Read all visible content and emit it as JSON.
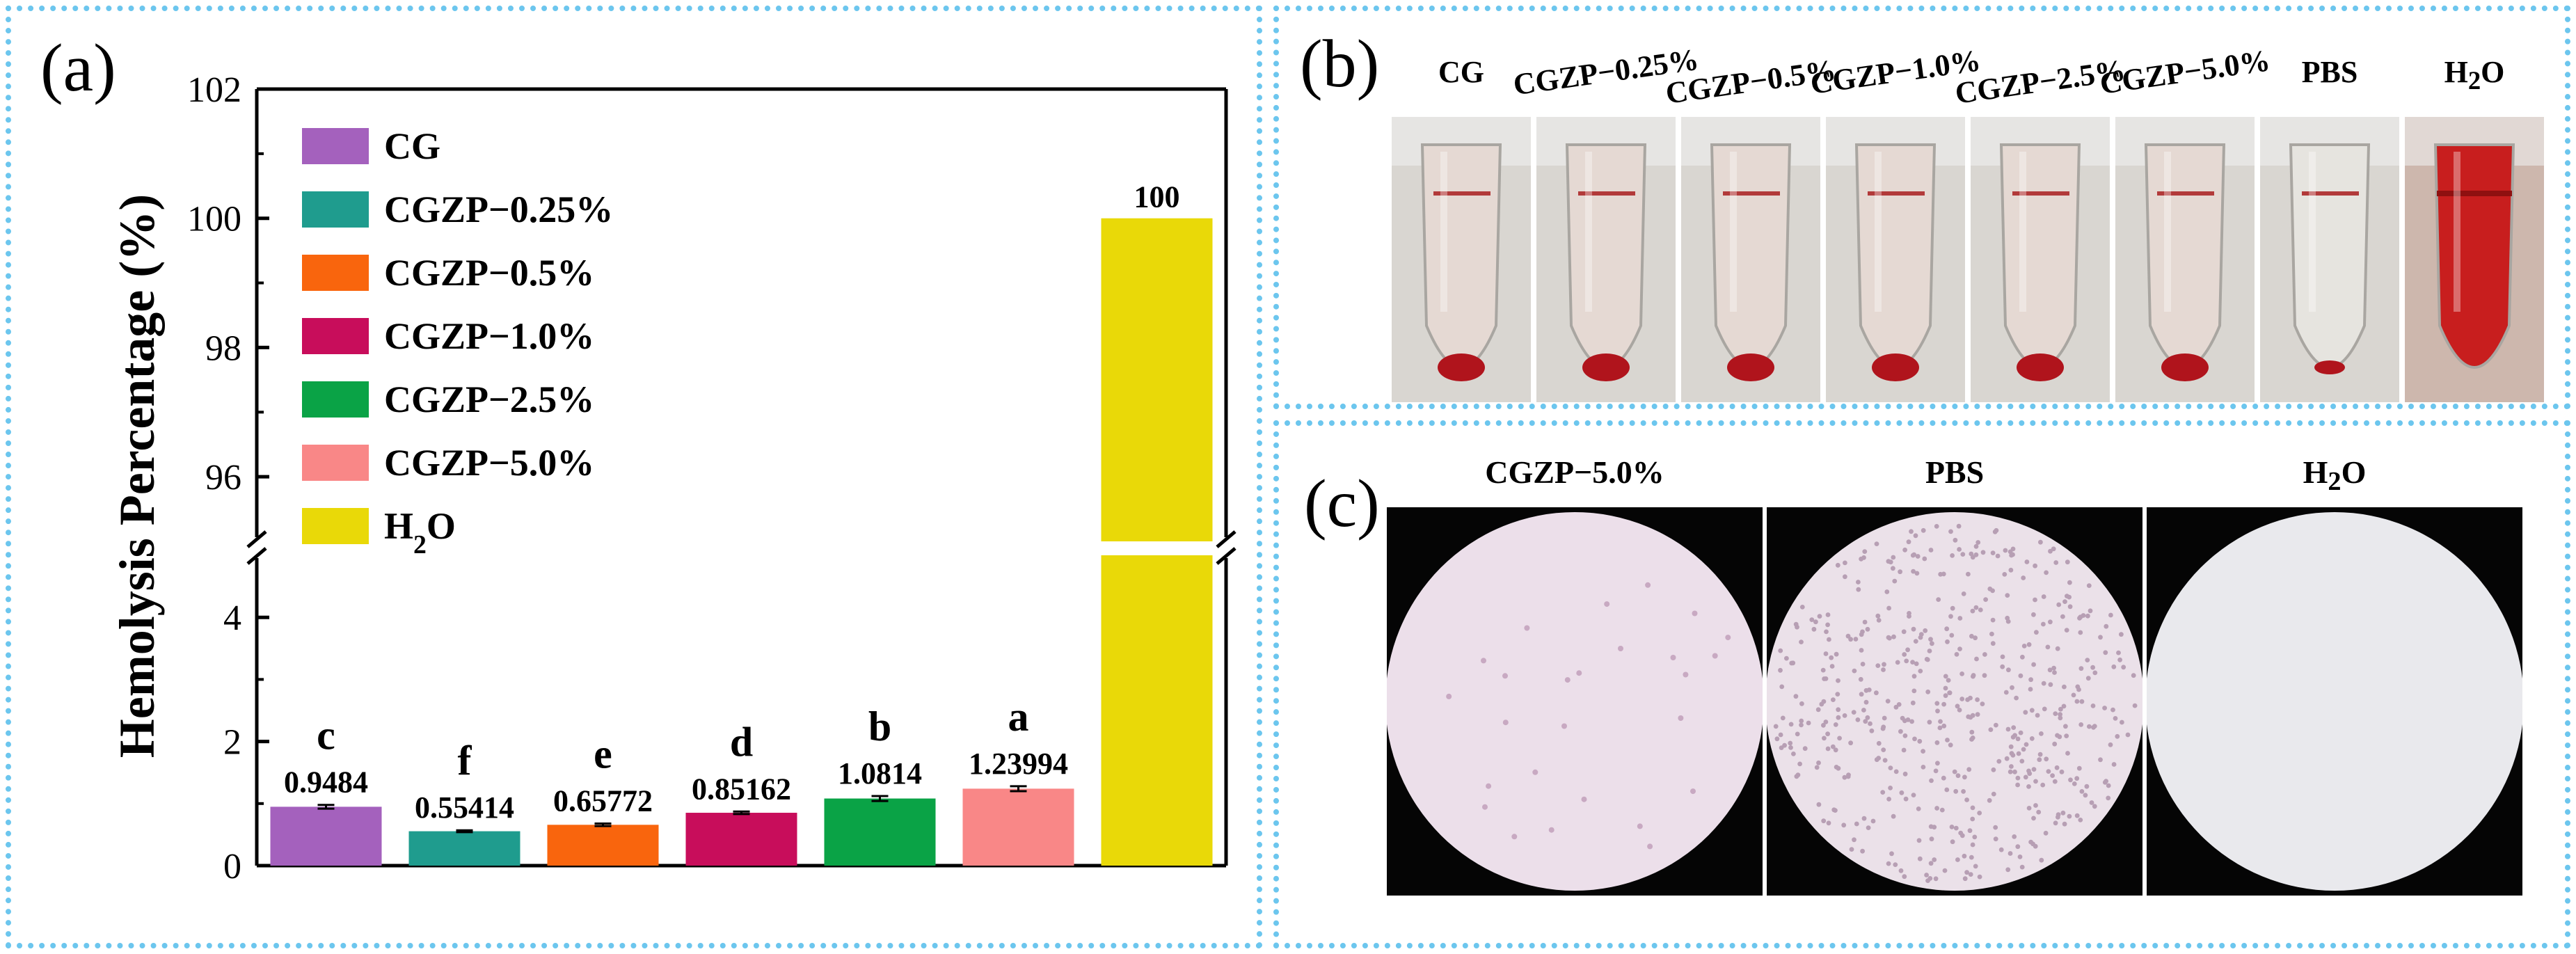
{
  "panel_a": {
    "label": "(a)",
    "chart_data": {
      "type": "bar",
      "ylabel": "Hemolysis Percentage (%)",
      "categories": [
        "CG",
        "CGZP−0.25%",
        "CGZP−0.5%",
        "CGZP−1.0%",
        "CGZP−2.5%",
        "CGZP−5.0%",
        "H₂O"
      ],
      "values": [
        0.9484,
        0.55414,
        0.65772,
        0.85162,
        1.0814,
        1.23994,
        100
      ],
      "value_labels": [
        "0.9484",
        "0.55414",
        "0.65772",
        "0.85162",
        "1.0814",
        "1.23994",
        "100"
      ],
      "error": [
        0.03,
        0.015,
        0.02,
        0.02,
        0.04,
        0.04,
        0
      ],
      "significance": [
        "c",
        "f",
        "e",
        "d",
        "b",
        "a",
        ""
      ],
      "colors": [
        "#a461bd",
        "#1f9c8e",
        "#f9650d",
        "#c80d5b",
        "#0aa346",
        "#f98787",
        "#e9d908"
      ],
      "y_axis_broken": true,
      "lower_ylim": [
        0,
        5
      ],
      "upper_ylim": [
        95,
        102
      ],
      "lower_ticks": [
        "0",
        "2",
        "4"
      ],
      "upper_ticks": [
        "96",
        "98",
        "100",
        "102"
      ],
      "legend": {
        "placement": "top-left",
        "entries": [
          "CG",
          "CGZP−0.25%",
          "CGZP−0.5%",
          "CGZP−1.0%",
          "CGZP−2.5%",
          "CGZP−5.0%",
          "H₂O"
        ]
      }
    }
  },
  "panel_b": {
    "label": "(b)",
    "tube_labels": [
      "CG",
      "CGZP−0.25%",
      "CGZP−0.5%",
      "CGZP−1.0%",
      "CGZP−2.5%",
      "CGZP−5.0%",
      "PBS",
      "H₂O"
    ]
  },
  "panel_c": {
    "label": "(c)",
    "image_labels": [
      "CGZP−5.0%",
      "PBS",
      "H₂O"
    ]
  }
}
